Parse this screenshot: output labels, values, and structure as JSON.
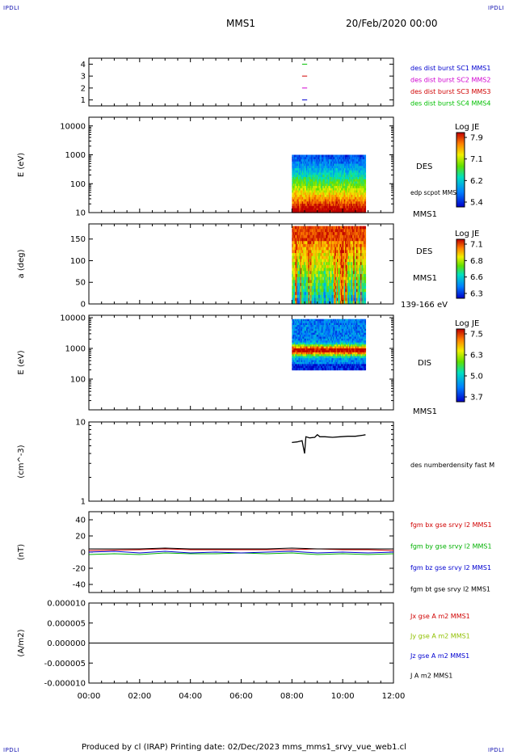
{
  "page": {
    "corner_tl": "IPDLI",
    "corner_tr": "IPDLI",
    "corner_bl": "IPDLI",
    "corner_br": "IPDLI",
    "title_left": "MMS1",
    "title_right": "20/Feb/2020 00:00",
    "footer": "Produced by cl (IRAP)   Printing date: 02/Dec/2023   mms_mms1_srvy_vue_web1.cl"
  },
  "chart_data": [
    {
      "type": "line",
      "panel": "spacecraft-availability",
      "ylim": [
        0.5,
        4.5
      ],
      "yticks": [
        "1",
        "2",
        "3",
        "4"
      ],
      "series": [
        {
          "name": "des dist burst SC1 MMS1",
          "color": "#0000d0",
          "y": 1,
          "x_start_h": 8.4,
          "x_end_h": 8.6
        },
        {
          "name": "des dist burst SC2 MMS2",
          "color": "#d000d0",
          "y": 2,
          "x_start_h": 8.4,
          "x_end_h": 8.6
        },
        {
          "name": "des dist burst SC3 MMS3",
          "color": "#d00000",
          "y": 3,
          "x_start_h": 8.4,
          "x_end_h": 8.6
        },
        {
          "name": "des dist burst SC4 MMS4",
          "color": "#00c000",
          "y": 4,
          "x_start_h": 8.4,
          "x_end_h": 8.6
        }
      ]
    },
    {
      "type": "heatmap",
      "panel": "des-energy-spectrogram",
      "ylabel": "E (eV)",
      "yscale": "log",
      "ylim": [
        10,
        20000
      ],
      "yticks": [
        "10",
        "100",
        "1000",
        "10000"
      ],
      "data_x_range_h": [
        8.0,
        10.9
      ],
      "data_y_range": [
        10,
        1000
      ],
      "labels": [
        "DES",
        "edp scpot MMS1",
        "MMS1"
      ],
      "colorbar": {
        "title": "Log JE",
        "ticks": [
          "7.9",
          "7.1",
          "6.2",
          "5.4"
        ],
        "range": [
          5.4,
          7.9
        ]
      }
    },
    {
      "type": "heatmap",
      "panel": "des-pitch-angle",
      "ylabel": "a (deg)",
      "ylim": [
        0,
        185
      ],
      "yticks": [
        "0",
        "50",
        "100",
        "150"
      ],
      "data_x_range_h": [
        8.0,
        10.9
      ],
      "data_y_range": [
        0,
        180
      ],
      "labels": [
        "DES",
        "MMS1",
        "139-166 eV"
      ],
      "colorbar": {
        "title": "Log JE",
        "ticks": [
          "7.1",
          "6.8",
          "6.6",
          "6.3"
        ],
        "range": [
          6.3,
          7.1
        ]
      }
    },
    {
      "type": "heatmap",
      "panel": "dis-energy-spectrogram",
      "ylabel": "E (eV)",
      "yscale": "log",
      "ylim": [
        10,
        12000
      ],
      "yticks": [
        "100",
        "1000",
        "10000"
      ],
      "data_x_range_h": [
        8.0,
        10.9
      ],
      "data_y_range": [
        200,
        9000
      ],
      "labels": [
        "DIS",
        "MMS1"
      ],
      "colorbar": {
        "title": "Log JE",
        "ticks": [
          "7.5",
          "6.3",
          "5.0",
          "3.7"
        ],
        "range": [
          3.7,
          7.5
        ]
      }
    },
    {
      "type": "line",
      "panel": "density",
      "ylabel": "(cm^-3)",
      "yscale": "log",
      "ylim": [
        1,
        10
      ],
      "yticks": [
        "1",
        "10"
      ],
      "series": [
        {
          "name": "des numberdensity fast M",
          "color": "#000000",
          "x": [
            8.0,
            8.2,
            8.4,
            8.5,
            8.55,
            8.7,
            8.9,
            9.0,
            9.1,
            9.3,
            9.6,
            9.9,
            10.2,
            10.5,
            10.8,
            10.9
          ],
          "y": [
            5.5,
            5.6,
            5.8,
            4.0,
            6.5,
            6.3,
            6.4,
            6.9,
            6.5,
            6.5,
            6.4,
            6.5,
            6.6,
            6.6,
            6.8,
            6.9
          ]
        }
      ]
    },
    {
      "type": "line",
      "panel": "magnetic-field",
      "ylabel": "(nT)",
      "ylim": [
        -50,
        50
      ],
      "yticks": [
        "40",
        "20",
        "0",
        "-20",
        "-40"
      ],
      "series": [
        {
          "name": "fgm bx gse srvy l2 MMS1",
          "color": "#d00000",
          "x": [
            0,
            2,
            3,
            4,
            6,
            8,
            9,
            10,
            11,
            12
          ],
          "y": [
            2,
            3,
            4,
            3,
            3,
            3,
            4,
            3,
            3,
            2
          ]
        },
        {
          "name": "fgm by gse srvy l2 MMS1",
          "color": "#00b000",
          "x": [
            0,
            1,
            2,
            3,
            4,
            5,
            6,
            7,
            8,
            9,
            10,
            11,
            12
          ],
          "y": [
            -3,
            -2,
            -3,
            -1,
            -2,
            -2,
            -1,
            -2,
            -1,
            -3,
            -2,
            -3,
            -2
          ]
        },
        {
          "name": "fgm bz gse srvy l2 MMS1",
          "color": "#0000d0",
          "x": [
            0,
            1,
            2,
            3,
            4,
            5,
            6,
            7,
            8,
            9,
            10,
            11,
            12
          ],
          "y": [
            0,
            1,
            -1,
            1,
            -1,
            0,
            -1,
            0,
            1,
            -1,
            0,
            -1,
            0
          ]
        },
        {
          "name": "fgm bt gse srvy l2 MMS1",
          "color": "#000000",
          "x": [
            0,
            1,
            2,
            3,
            4,
            5,
            6,
            7,
            8,
            9,
            10,
            11,
            12
          ],
          "y": [
            4,
            4,
            4,
            5,
            4,
            4,
            4,
            4,
            5,
            4,
            4,
            4,
            4
          ]
        }
      ]
    },
    {
      "type": "line",
      "panel": "current-density",
      "ylabel": "(A/m2)",
      "ylim": [
        -1e-05,
        1e-05
      ],
      "yticks": [
        "0.000010",
        "0.000005",
        "0.000000",
        "-0.000005",
        "-0.000010"
      ],
      "xticks": [
        "00:00",
        "02:00",
        "04:00",
        "06:00",
        "08:00",
        "10:00",
        "12:00"
      ],
      "xlim_h": [
        0,
        12
      ],
      "series": [
        {
          "name": "Jx gse A m2 MMS1",
          "color": "#d00000"
        },
        {
          "name": "Jy gse A m2 MMS1",
          "color": "#90c000"
        },
        {
          "name": "Jz gse A m2 MMS1",
          "color": "#0000d0"
        },
        {
          "name": "J A m2 MMS1",
          "color": "#000000",
          "x": [
            0,
            12
          ],
          "y": [
            0,
            0
          ]
        }
      ]
    }
  ]
}
